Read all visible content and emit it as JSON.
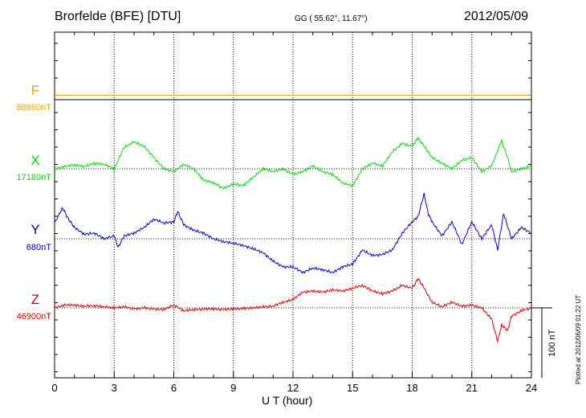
{
  "header": {
    "station": "Brorfelde (BFE)  [DTU]",
    "coords": "GG ( 55.62°,  11.67°)",
    "date": "2012/05/09"
  },
  "footer": {
    "plotted_note": "Plotted at 2012/06/09 01:22 UT"
  },
  "colors": {
    "F": "#f0a000",
    "X": "#00dd00",
    "Y": "#0000cc",
    "Z": "#dd0000"
  },
  "chart_data": {
    "type": "line",
    "xlabel": "U T (hour)",
    "xlim": [
      0,
      24
    ],
    "x_ticks": [
      "0",
      "3",
      "6",
      "9",
      "12",
      "15",
      "18",
      "21",
      "24"
    ],
    "scale_bar": "100 nT",
    "grid": true,
    "series": [
      {
        "name": "F",
        "baseline_label": "88880nT",
        "x": [
          0,
          6,
          12,
          18,
          24
        ],
        "y": [
          8,
          8,
          8,
          8,
          8
        ]
      },
      {
        "name": "X",
        "baseline_label": "17180nT",
        "x": [
          0,
          0.5,
          1,
          1.5,
          2,
          2.5,
          3,
          3.5,
          4,
          4.5,
          5,
          5.5,
          6,
          6.5,
          7,
          7.5,
          8,
          8.5,
          9,
          9.5,
          10,
          10.5,
          11,
          11.5,
          12,
          12.5,
          13,
          13.5,
          14,
          14.5,
          15,
          15.5,
          16,
          16.5,
          17,
          17.5,
          18,
          18.3,
          18.6,
          19,
          19.5,
          20,
          20.5,
          21,
          21.5,
          22,
          22.5,
          22.8,
          23,
          23.5,
          24
        ],
        "y": [
          0,
          4,
          7,
          4,
          10,
          8,
          0,
          38,
          48,
          40,
          20,
          0,
          -5,
          8,
          0,
          -20,
          -25,
          -35,
          -27,
          -30,
          -15,
          0,
          -5,
          0,
          -10,
          -5,
          5,
          -5,
          -10,
          -25,
          -30,
          0,
          10,
          5,
          30,
          45,
          40,
          55,
          40,
          20,
          10,
          0,
          15,
          20,
          -5,
          5,
          50,
          20,
          -5,
          0,
          5
        ]
      },
      {
        "name": "Y",
        "baseline_label": "680nT",
        "x": [
          0,
          0.4,
          0.7,
          1,
          1.5,
          2,
          2.5,
          3,
          3.2,
          3.5,
          4,
          4.5,
          5,
          5.5,
          6,
          6.2,
          6.5,
          7,
          7.5,
          8,
          8.5,
          9,
          9.5,
          10,
          10.5,
          11,
          11.5,
          12,
          12.5,
          13,
          13.5,
          14,
          14.5,
          15,
          15.5,
          16,
          16.5,
          17,
          17.5,
          18,
          18.3,
          18.6,
          18.8,
          19,
          19.5,
          20,
          20.5,
          21,
          21.5,
          22,
          22.3,
          22.6,
          23,
          23.5,
          24
        ],
        "y": [
          28,
          55,
          35,
          20,
          8,
          10,
          0,
          5,
          -15,
          5,
          10,
          20,
          35,
          28,
          30,
          48,
          25,
          15,
          10,
          0,
          -5,
          -8,
          -12,
          -18,
          -25,
          -40,
          -50,
          -50,
          -60,
          -52,
          -55,
          -60,
          -50,
          -45,
          -20,
          -30,
          -28,
          -20,
          10,
          30,
          40,
          80,
          45,
          30,
          5,
          30,
          -10,
          30,
          0,
          25,
          -20,
          45,
          0,
          20,
          10
        ]
      },
      {
        "name": "Z",
        "baseline_label": "46900nT",
        "x": [
          0,
          0.5,
          1,
          1.5,
          2,
          2.5,
          3,
          3.5,
          4,
          4.5,
          5,
          5.5,
          6,
          6.5,
          7,
          7.5,
          8,
          8.5,
          9,
          9.5,
          10,
          10.5,
          11,
          11.5,
          12,
          12.5,
          13,
          13.5,
          14,
          14.5,
          15,
          15.5,
          16,
          16.5,
          17,
          17.5,
          18,
          18.3,
          18.6,
          19,
          19.5,
          20,
          20.5,
          21,
          21.5,
          22,
          22.3,
          22.5,
          22.8,
          23,
          23.5,
          24
        ],
        "y": [
          0,
          5,
          5,
          3,
          4,
          2,
          0,
          2,
          -2,
          0,
          -2,
          -3,
          5,
          -5,
          -3,
          -2,
          -2,
          -3,
          -2,
          -1,
          0,
          2,
          3,
          10,
          15,
          28,
          30,
          28,
          32,
          30,
          35,
          40,
          30,
          25,
          30,
          40,
          35,
          52,
          35,
          10,
          2,
          10,
          3,
          5,
          0,
          -20,
          -60,
          -30,
          -40,
          -15,
          -5,
          0
        ]
      }
    ]
  }
}
